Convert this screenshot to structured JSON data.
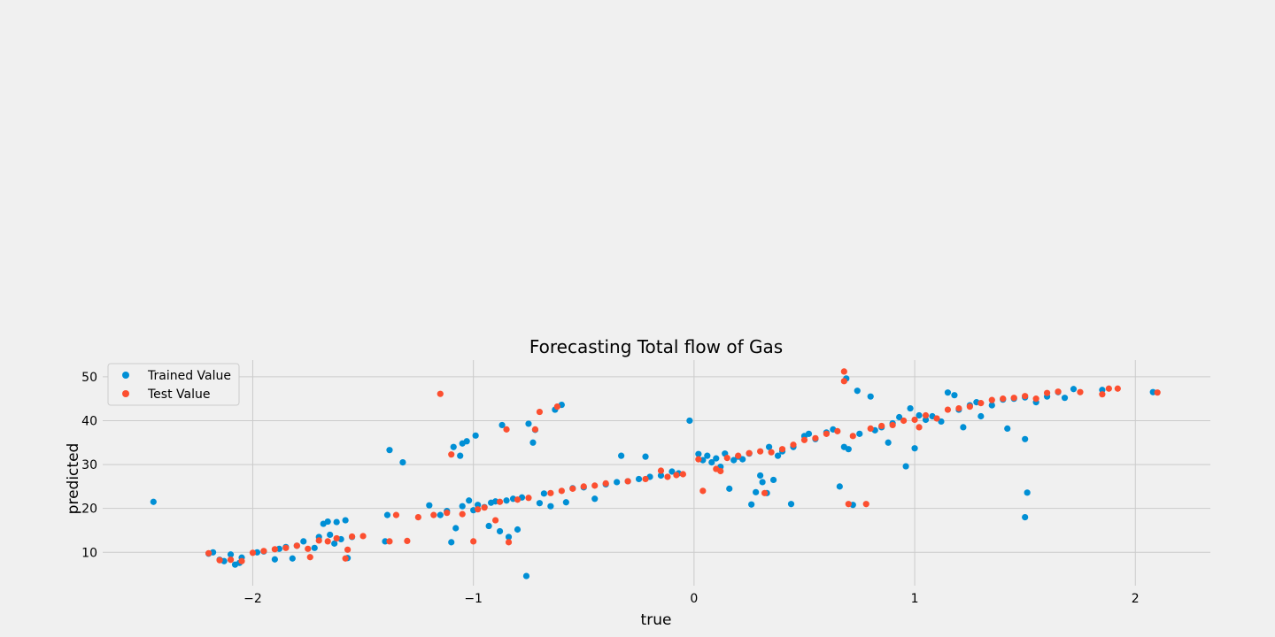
{
  "chart_data": {
    "type": "scatter",
    "title": "Forecasting Total flow of Gas",
    "xlabel": "true",
    "ylabel": "predicted",
    "xlim": [
      -2.68,
      2.34
    ],
    "ylim": [
      2.4,
      53.8
    ],
    "xticks": [
      -2,
      -1,
      0,
      1,
      2
    ],
    "xtick_labels": [
      "−2",
      "−1",
      "0",
      "1",
      "2"
    ],
    "yticks": [
      10,
      20,
      30,
      40,
      50
    ],
    "ytick_labels": [
      "10",
      "20",
      "30",
      "40",
      "50"
    ],
    "grid": true,
    "legend_position": "top-left",
    "series": [
      {
        "name": "Trained Value",
        "color": "#008fd5",
        "points": [
          [
            -2.45,
            21.5
          ],
          [
            -2.2,
            9.7
          ],
          [
            -2.18,
            10.0
          ],
          [
            -2.15,
            8.3
          ],
          [
            -2.13,
            8.0
          ],
          [
            -2.1,
            9.5
          ],
          [
            -2.08,
            7.2
          ],
          [
            -2.06,
            7.6
          ],
          [
            -2.05,
            8.8
          ],
          [
            -1.98,
            10.0
          ],
          [
            -1.95,
            10.2
          ],
          [
            -1.9,
            8.4
          ],
          [
            -1.88,
            10.8
          ],
          [
            -1.85,
            11.2
          ],
          [
            -1.82,
            8.6
          ],
          [
            -1.8,
            11.5
          ],
          [
            -1.77,
            12.5
          ],
          [
            -1.72,
            11.0
          ],
          [
            -1.7,
            13.5
          ],
          [
            -1.68,
            16.5
          ],
          [
            -1.66,
            17.0
          ],
          [
            -1.65,
            14.0
          ],
          [
            -1.63,
            12.0
          ],
          [
            -1.62,
            16.9
          ],
          [
            -1.6,
            13.0
          ],
          [
            -1.58,
            17.3
          ],
          [
            -1.57,
            8.7
          ],
          [
            -1.55,
            13.5
          ],
          [
            -1.4,
            12.5
          ],
          [
            -1.39,
            18.5
          ],
          [
            -1.38,
            33.3
          ],
          [
            -1.32,
            30.5
          ],
          [
            -1.2,
            20.7
          ],
          [
            -1.15,
            18.5
          ],
          [
            -1.12,
            19.4
          ],
          [
            -1.1,
            12.3
          ],
          [
            -1.09,
            34.0
          ],
          [
            -1.08,
            15.5
          ],
          [
            -1.06,
            32.0
          ],
          [
            -1.05,
            34.8
          ],
          [
            -1.05,
            20.5
          ],
          [
            -1.03,
            35.3
          ],
          [
            -1.02,
            21.8
          ],
          [
            -1.0,
            19.6
          ],
          [
            -0.99,
            36.6
          ],
          [
            -0.98,
            20.8
          ],
          [
            -0.95,
            20.3
          ],
          [
            -0.93,
            16.0
          ],
          [
            -0.92,
            21.3
          ],
          [
            -0.9,
            21.6
          ],
          [
            -0.88,
            14.8
          ],
          [
            -0.87,
            39.0
          ],
          [
            -0.85,
            21.8
          ],
          [
            -0.84,
            13.5
          ],
          [
            -0.82,
            22.2
          ],
          [
            -0.8,
            15.2
          ],
          [
            -0.78,
            22.5
          ],
          [
            -0.76,
            4.6
          ],
          [
            -0.75,
            39.3
          ],
          [
            -0.73,
            35.0
          ],
          [
            -0.72,
            37.9
          ],
          [
            -0.7,
            21.2
          ],
          [
            -0.68,
            23.4
          ],
          [
            -0.65,
            20.5
          ],
          [
            -0.63,
            42.5
          ],
          [
            -0.6,
            43.6
          ],
          [
            -0.58,
            21.4
          ],
          [
            -0.55,
            24.6
          ],
          [
            -0.5,
            24.8
          ],
          [
            -0.45,
            22.2
          ],
          [
            -0.4,
            25.5
          ],
          [
            -0.35,
            26.0
          ],
          [
            -0.33,
            32.0
          ],
          [
            -0.3,
            26.2
          ],
          [
            -0.25,
            26.7
          ],
          [
            -0.22,
            31.8
          ],
          [
            -0.2,
            27.2
          ],
          [
            -0.15,
            27.5
          ],
          [
            -0.1,
            28.4
          ],
          [
            -0.07,
            28.0
          ],
          [
            -0.02,
            40.0
          ],
          [
            0.02,
            32.4
          ],
          [
            0.04,
            31.0
          ],
          [
            0.06,
            32.0
          ],
          [
            0.08,
            30.5
          ],
          [
            0.1,
            31.4
          ],
          [
            0.12,
            29.5
          ],
          [
            0.14,
            32.5
          ],
          [
            0.16,
            24.5
          ],
          [
            0.18,
            31.0
          ],
          [
            0.2,
            31.8
          ],
          [
            0.22,
            31.2
          ],
          [
            0.25,
            32.5
          ],
          [
            0.26,
            20.9
          ],
          [
            0.28,
            23.7
          ],
          [
            0.3,
            27.5
          ],
          [
            0.31,
            26.0
          ],
          [
            0.33,
            23.5
          ],
          [
            0.34,
            34.0
          ],
          [
            0.36,
            26.5
          ],
          [
            0.38,
            32.0
          ],
          [
            0.4,
            33.0
          ],
          [
            0.44,
            21.0
          ],
          [
            0.45,
            34.0
          ],
          [
            0.5,
            36.5
          ],
          [
            0.52,
            37.0
          ],
          [
            0.55,
            35.8
          ],
          [
            0.6,
            37.3
          ],
          [
            0.63,
            38.0
          ],
          [
            0.66,
            25.0
          ],
          [
            0.68,
            34.0
          ],
          [
            0.69,
            49.6
          ],
          [
            0.7,
            33.5
          ],
          [
            0.72,
            20.8
          ],
          [
            0.74,
            46.8
          ],
          [
            0.75,
            37.0
          ],
          [
            0.8,
            45.5
          ],
          [
            0.82,
            37.8
          ],
          [
            0.85,
            38.5
          ],
          [
            0.88,
            35.0
          ],
          [
            0.9,
            39.4
          ],
          [
            0.93,
            40.8
          ],
          [
            0.96,
            29.6
          ],
          [
            0.98,
            42.8
          ],
          [
            1.0,
            33.7
          ],
          [
            1.02,
            41.2
          ],
          [
            1.05,
            40.2
          ],
          [
            1.08,
            41.0
          ],
          [
            1.12,
            39.8
          ],
          [
            1.15,
            46.4
          ],
          [
            1.18,
            45.8
          ],
          [
            1.2,
            42.5
          ],
          [
            1.22,
            38.5
          ],
          [
            1.25,
            43.5
          ],
          [
            1.28,
            44.2
          ],
          [
            1.3,
            41.0
          ],
          [
            1.35,
            43.5
          ],
          [
            1.4,
            44.8
          ],
          [
            1.42,
            38.2
          ],
          [
            1.45,
            45.0
          ],
          [
            1.5,
            45.3
          ],
          [
            1.5,
            35.8
          ],
          [
            1.51,
            23.6
          ],
          [
            1.5,
            18.0
          ],
          [
            1.55,
            44.2
          ],
          [
            1.6,
            45.5
          ],
          [
            1.65,
            46.5
          ],
          [
            1.68,
            45.2
          ],
          [
            1.72,
            47.2
          ],
          [
            1.85,
            47.0
          ],
          [
            2.08,
            46.5
          ]
        ]
      },
      {
        "name": "Test Value",
        "color": "#fc4f30",
        "points": [
          [
            -2.2,
            9.8
          ],
          [
            -2.15,
            8.2
          ],
          [
            -2.1,
            8.3
          ],
          [
            -2.05,
            8.0
          ],
          [
            -2.0,
            9.9
          ],
          [
            -1.95,
            10.3
          ],
          [
            -1.9,
            10.7
          ],
          [
            -1.85,
            11.0
          ],
          [
            -1.8,
            11.5
          ],
          [
            -1.75,
            10.8
          ],
          [
            -1.74,
            8.9
          ],
          [
            -1.7,
            12.7
          ],
          [
            -1.66,
            12.5
          ],
          [
            -1.62,
            13.2
          ],
          [
            -1.58,
            8.6
          ],
          [
            -1.57,
            10.6
          ],
          [
            -1.55,
            13.6
          ],
          [
            -1.5,
            13.7
          ],
          [
            -1.38,
            12.5
          ],
          [
            -1.35,
            18.5
          ],
          [
            -1.3,
            12.6
          ],
          [
            -1.25,
            18.0
          ],
          [
            -1.18,
            18.5
          ],
          [
            -1.15,
            46.1
          ],
          [
            -1.12,
            19.0
          ],
          [
            -1.1,
            32.3
          ],
          [
            -1.05,
            18.7
          ],
          [
            -1.0,
            12.5
          ],
          [
            -0.98,
            19.8
          ],
          [
            -0.95,
            20.2
          ],
          [
            -0.9,
            17.3
          ],
          [
            -0.88,
            21.5
          ],
          [
            -0.85,
            38.0
          ],
          [
            -0.84,
            12.3
          ],
          [
            -0.8,
            22.0
          ],
          [
            -0.75,
            22.4
          ],
          [
            -0.72,
            38.0
          ],
          [
            -0.7,
            42.0
          ],
          [
            -0.65,
            23.5
          ],
          [
            -0.62,
            43.2
          ],
          [
            -0.6,
            24.0
          ],
          [
            -0.55,
            24.5
          ],
          [
            -0.5,
            25.0
          ],
          [
            -0.45,
            25.2
          ],
          [
            -0.4,
            25.7
          ],
          [
            -0.3,
            26.2
          ],
          [
            -0.22,
            26.7
          ],
          [
            -0.15,
            28.6
          ],
          [
            -0.12,
            27.2
          ],
          [
            -0.08,
            27.6
          ],
          [
            -0.05,
            27.8
          ],
          [
            0.02,
            31.2
          ],
          [
            0.04,
            24.0
          ],
          [
            0.1,
            29.0
          ],
          [
            0.12,
            28.5
          ],
          [
            0.15,
            31.5
          ],
          [
            0.2,
            32.0
          ],
          [
            0.25,
            32.6
          ],
          [
            0.3,
            33.0
          ],
          [
            0.32,
            23.5
          ],
          [
            0.35,
            32.8
          ],
          [
            0.4,
            33.5
          ],
          [
            0.45,
            34.5
          ],
          [
            0.5,
            35.6
          ],
          [
            0.55,
            36.0
          ],
          [
            0.6,
            37.0
          ],
          [
            0.65,
            37.6
          ],
          [
            0.68,
            51.2
          ],
          [
            0.68,
            49.0
          ],
          [
            0.7,
            21.0
          ],
          [
            0.72,
            36.5
          ],
          [
            0.78,
            21.0
          ],
          [
            0.8,
            38.2
          ],
          [
            0.85,
            38.8
          ],
          [
            0.9,
            39.0
          ],
          [
            0.95,
            40.0
          ],
          [
            1.0,
            40.2
          ],
          [
            1.02,
            38.5
          ],
          [
            1.05,
            41.2
          ],
          [
            1.1,
            40.5
          ],
          [
            1.15,
            42.5
          ],
          [
            1.2,
            42.8
          ],
          [
            1.25,
            43.2
          ],
          [
            1.3,
            44.0
          ],
          [
            1.35,
            44.7
          ],
          [
            1.4,
            45.0
          ],
          [
            1.45,
            45.2
          ],
          [
            1.5,
            45.6
          ],
          [
            1.55,
            45.0
          ],
          [
            1.6,
            46.3
          ],
          [
            1.65,
            46.6
          ],
          [
            1.75,
            46.5
          ],
          [
            1.85,
            46.0
          ],
          [
            1.88,
            47.3
          ],
          [
            1.92,
            47.3
          ],
          [
            2.1,
            46.4
          ]
        ]
      }
    ]
  }
}
